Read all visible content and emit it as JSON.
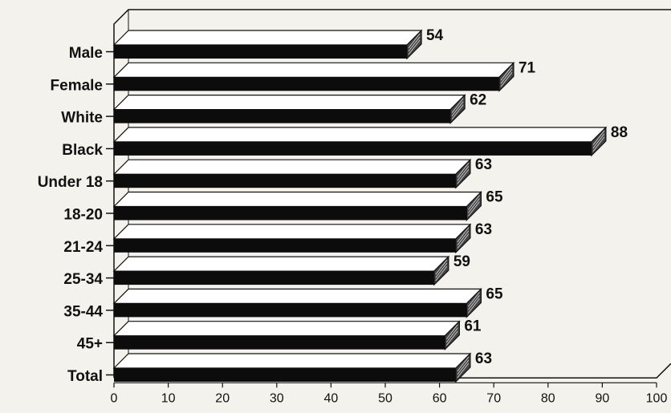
{
  "chart_data": {
    "type": "bar",
    "orientation": "horizontal",
    "style": "3d",
    "categories": [
      "Male",
      "Female",
      "White",
      "Black",
      "Under 18",
      "18-20",
      "21-24",
      "25-34",
      "35-44",
      "45+",
      "Total"
    ],
    "values": [
      54,
      71,
      62,
      88,
      63,
      65,
      63,
      59,
      65,
      61,
      63
    ],
    "xlim": [
      0,
      100
    ],
    "xticks": [
      0,
      10,
      20,
      30,
      40,
      50,
      60,
      70,
      80,
      90,
      100
    ],
    "tick_labels": [
      "0",
      "10",
      "20",
      "30",
      "40",
      "50",
      "60",
      "70",
      "80",
      "90",
      "100"
    ],
    "value_labels": [
      "54",
      "71",
      "62",
      "88",
      "63",
      "65",
      "63",
      "59",
      "65",
      "61",
      "63"
    ],
    "bar_color": "#0c0c0c",
    "bar_top_color": "#ffffff",
    "background": "#f4f2ec",
    "grid": false,
    "legend": "none"
  }
}
